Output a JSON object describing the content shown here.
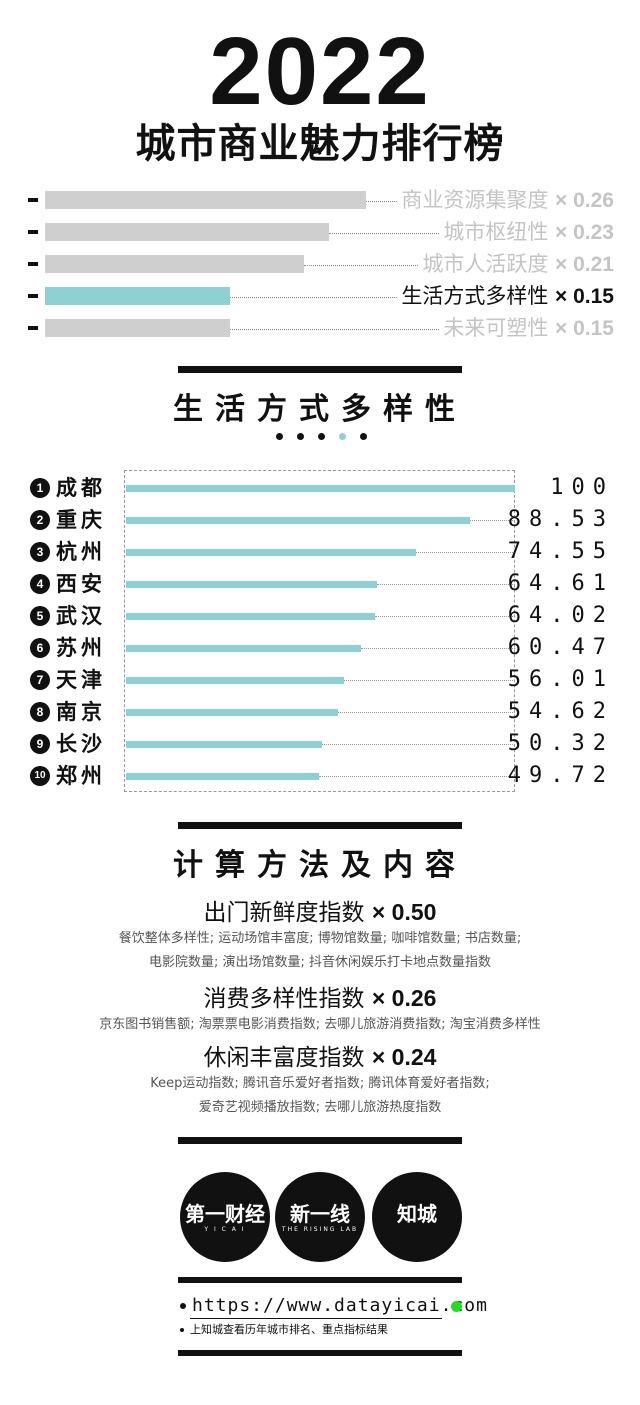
{
  "header": {
    "year": "2022",
    "title": "城市商业魅力排行榜"
  },
  "indicators": [
    {
      "label": "商业资源集聚度",
      "weight": "× 0.26",
      "bar_fraction": 0.26,
      "highlight": false
    },
    {
      "label": "城市枢纽性",
      "weight": "× 0.23",
      "bar_fraction": 0.23,
      "highlight": false
    },
    {
      "label": "城市人活跃度",
      "weight": "× 0.21",
      "bar_fraction": 0.21,
      "highlight": false
    },
    {
      "label": "生活方式多样性",
      "weight": "× 0.15",
      "bar_fraction": 0.15,
      "highlight": true
    },
    {
      "label": "未来可塑性",
      "weight": "× 0.15",
      "bar_fraction": 0.15,
      "highlight": false
    }
  ],
  "colors": {
    "accent": "#8fd0d2",
    "gray_bar": "#cfcfcf",
    "gray_text": "#c4c4c4",
    "dark": "#111111"
  },
  "section": {
    "title": "生活方式多样性",
    "page_dots": 5,
    "active_dot": 4
  },
  "chart_data": {
    "type": "bar",
    "orientation": "horizontal",
    "categories": [
      "成都",
      "重庆",
      "杭州",
      "西安",
      "武汉",
      "苏州",
      "天津",
      "南京",
      "长沙",
      "郑州"
    ],
    "ranks": [
      "1",
      "2",
      "3",
      "4",
      "5",
      "6",
      "7",
      "8",
      "9",
      "10"
    ],
    "values": [
      100,
      88.53,
      74.55,
      64.61,
      64.02,
      60.47,
      56.01,
      54.62,
      50.32,
      49.72
    ],
    "labels": [
      "100",
      "88.53",
      "74.55",
      "64.61",
      "64.02",
      "60.47",
      "56.01",
      "54.62",
      "50.32",
      "49.72"
    ],
    "xlim": [
      0,
      100
    ]
  },
  "method": {
    "title": "计算方法及内容",
    "items": [
      {
        "name": "出门新鲜度指数",
        "weight": "× 0.50",
        "lines": [
          "餐饮整体多样性; 运动场馆丰富度; 博物馆数量; 咖啡馆数量; 书店数量;",
          "电影院数量; 演出场馆数量; 抖音休闲娱乐打卡地点数量指数"
        ]
      },
      {
        "name": "消费多样性指数",
        "weight": "× 0.26",
        "lines": [
          "京东图书销售额; 淘票票电影消费指数; 去哪儿旅游消费指数; 淘宝消费多样性"
        ]
      },
      {
        "name": "休闲丰富度指数",
        "weight": "× 0.24",
        "lines": [
          "Keep运动指数; 腾讯音乐爱好者指数; 腾讯体育爱好者指数;",
          "爱奇艺视频播放指数; 去哪儿旅游热度指数"
        ]
      }
    ]
  },
  "logos": [
    {
      "name": "第一财经",
      "sub": "Y I C A I"
    },
    {
      "name": "新一线",
      "sub": "THE RISING LAB"
    },
    {
      "name": "知城",
      "sub": ""
    }
  ],
  "footer": {
    "url": "https://www.datayicai.com",
    "note": "上知城查看历年城市排名、重点指标结果",
    "accent_dot": "#22dd22"
  }
}
